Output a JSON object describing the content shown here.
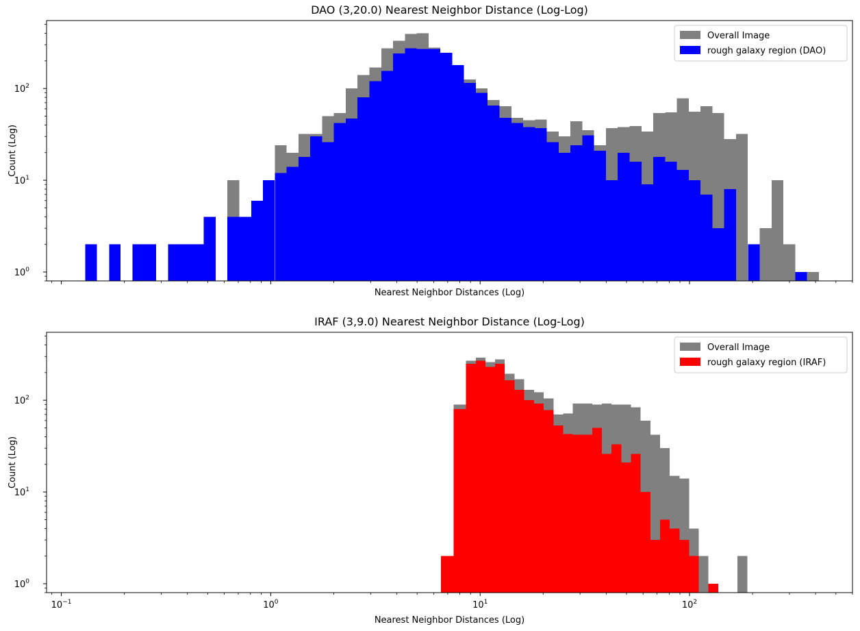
{
  "chart_data": [
    {
      "type": "bar",
      "title": "DAO (3,20.0) Nearest Neighbor Distance (Log-Log)",
      "xlabel": "Nearest Neighbor Distances (Log)",
      "ylabel": "Count (Log)",
      "xscale": "log",
      "yscale": "log",
      "xlim": [
        0.085,
        600
      ],
      "ylim": [
        0.8,
        550
      ],
      "show_x_tick_labels": false,
      "grid": false,
      "legend_position": "top-right",
      "bin_edges": [
        0.13,
        0.148,
        0.169,
        0.192,
        0.219,
        0.25,
        0.284,
        0.324,
        0.369,
        0.42,
        0.479,
        0.545,
        0.621,
        0.707,
        0.806,
        0.917,
        1.045,
        1.19,
        1.356,
        1.544,
        1.759,
        2.003,
        2.281,
        2.598,
        2.959,
        3.37,
        3.838,
        4.371,
        4.978,
        5.67,
        6.457,
        7.354,
        8.376,
        9.539,
        10.864,
        12.373,
        14.092,
        16.049,
        18.278,
        20.817,
        23.709,
        27.002,
        30.752,
        35.023,
        39.888,
        45.428,
        51.738,
        58.924,
        67.109,
        76.43,
        87.046,
        99.136,
        112.907,
        128.589,
        146.45,
        166.791,
        189.958,
        216.342,
        246.392,
        280.615,
        319.592,
        363.983,
        414.539
      ],
      "series": [
        {
          "name": "Overall Image",
          "color": "#808080",
          "values": [
            2,
            0,
            2,
            0,
            2,
            2,
            0,
            2,
            2,
            2,
            4,
            0,
            10,
            4,
            6,
            10,
            24,
            20,
            32,
            32,
            50,
            54,
            100,
            140,
            170,
            275,
            330,
            395,
            400,
            280,
            210,
            155,
            125,
            100,
            75,
            64,
            48,
            45,
            46,
            34,
            30,
            44,
            35,
            24,
            37,
            38,
            39,
            34,
            54,
            55,
            78,
            56,
            64,
            54,
            28,
            32,
            0,
            3,
            10,
            2,
            1,
            1,
            1
          ],
          "note_zero": "zero means empty bin"
        },
        {
          "name": "rough galaxy region (DAO)",
          "color": "#0000ff",
          "values": [
            2,
            0,
            2,
            0,
            2,
            2,
            0,
            2,
            2,
            2,
            4,
            0,
            4,
            4,
            6,
            10,
            12,
            14,
            18,
            30,
            26,
            42,
            47,
            80,
            120,
            155,
            240,
            275,
            270,
            270,
            245,
            180,
            115,
            90,
            65,
            48,
            42,
            38,
            37,
            26,
            20,
            24,
            31,
            21,
            10,
            20,
            16,
            9,
            18,
            16,
            13,
            10,
            7,
            3,
            8,
            0,
            2,
            0,
            0,
            0,
            1,
            0,
            0
          ]
        }
      ]
    },
    {
      "type": "bar",
      "title": "IRAF (3,9.0) Nearest Neighbor Distance (Log-Log)",
      "xlabel": "Nearest Neighbor Distances (Log)",
      "ylabel": "Count (Log)",
      "xscale": "log",
      "yscale": "log",
      "xlim": [
        0.085,
        600
      ],
      "ylim": [
        0.8,
        550
      ],
      "show_x_tick_labels": true,
      "grid": false,
      "legend_position": "top-right",
      "bin_edges": [
        6.5,
        7.46,
        8.56,
        9.53,
        10.6,
        11.8,
        13.1,
        14.6,
        16.25,
        18.1,
        20.1,
        22.4,
        24.9,
        27.7,
        30.8,
        34.3,
        38.1,
        42.4,
        47.2,
        52.5,
        58.4,
        65.0,
        72.3,
        80.4,
        89.5,
        99.5,
        110.7,
        123.2,
        137.0,
        152.5,
        169.6,
        188.7,
        210.0,
        233.6,
        259.9,
        289.1,
        321.7
      ],
      "series": [
        {
          "name": "Overall Image",
          "color": "#808080",
          "values": [
            2,
            90,
            270,
            290,
            260,
            280,
            195,
            170,
            130,
            122,
            105,
            70,
            72,
            92,
            92,
            90,
            92,
            90,
            90,
            84,
            60,
            42,
            30,
            15,
            14,
            4,
            2,
            0,
            0,
            0,
            2,
            0,
            0,
            0,
            0,
            0
          ],
          "note_zero": "zero means empty bin"
        },
        {
          "name": "rough galaxy region (IRAF)",
          "color": "#ff0000",
          "values": [
            2,
            80,
            250,
            270,
            230,
            250,
            165,
            130,
            100,
            92,
            78,
            53,
            43,
            42,
            42,
            50,
            26,
            33,
            21,
            26,
            10,
            3,
            5,
            4,
            3,
            2,
            0,
            1,
            0,
            0,
            0,
            0,
            0,
            0,
            0,
            0
          ]
        }
      ]
    }
  ],
  "x_tick_labels": [
    "10",
    "10",
    "10",
    "10"
  ],
  "x_tick_exponents": [
    "−1",
    "0",
    "1",
    "2"
  ],
  "y_tick_labels": [
    "10",
    "10",
    "10"
  ],
  "y_tick_exponents": [
    "0",
    "1",
    "2"
  ]
}
